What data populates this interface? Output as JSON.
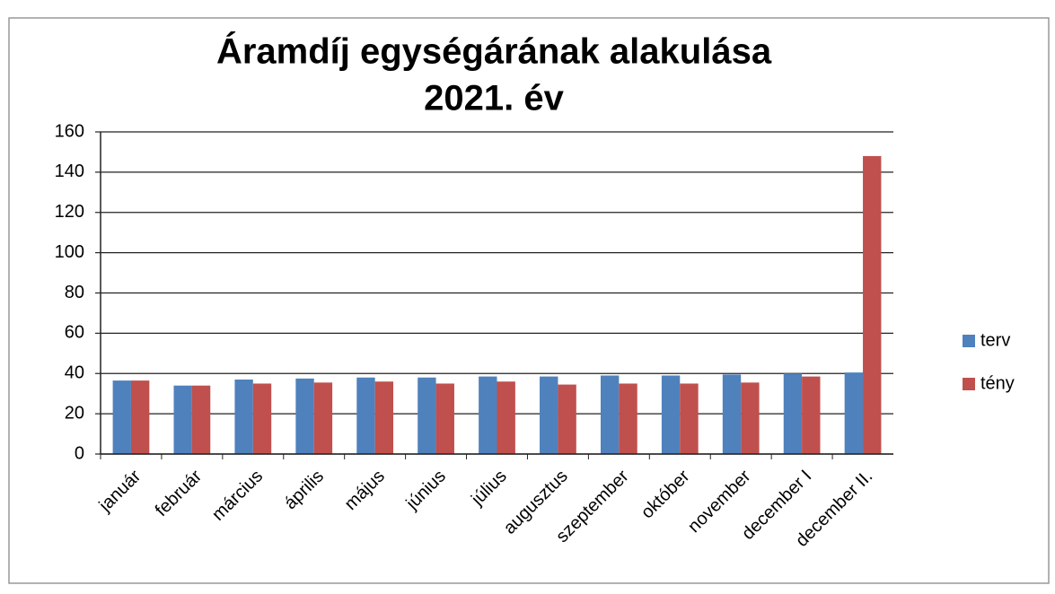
{
  "chart_data": {
    "type": "bar",
    "title": "Áramdíj egységárának alakulása",
    "subtitle": "2021. év",
    "categories": [
      "január",
      "február",
      "március",
      "április",
      "május",
      "június",
      "július",
      "augusztus",
      "szeptember",
      "október",
      "november",
      "december I",
      "december II."
    ],
    "series": [
      {
        "name": "terv",
        "color": "#4f81bd",
        "values": [
          36.5,
          34,
          37,
          37.5,
          38,
          38,
          38.5,
          38.5,
          39,
          39,
          39.5,
          40,
          40.5
        ]
      },
      {
        "name": "tény",
        "color": "#c0504d",
        "values": [
          36.5,
          34,
          35,
          35.5,
          36,
          35,
          36,
          34.5,
          35,
          35,
          35.5,
          38.5,
          148
        ]
      }
    ],
    "ylim": [
      0,
      160
    ],
    "yticks": [
      0,
      20,
      40,
      60,
      80,
      100,
      120,
      140,
      160
    ],
    "grid": true,
    "legend": "right"
  }
}
